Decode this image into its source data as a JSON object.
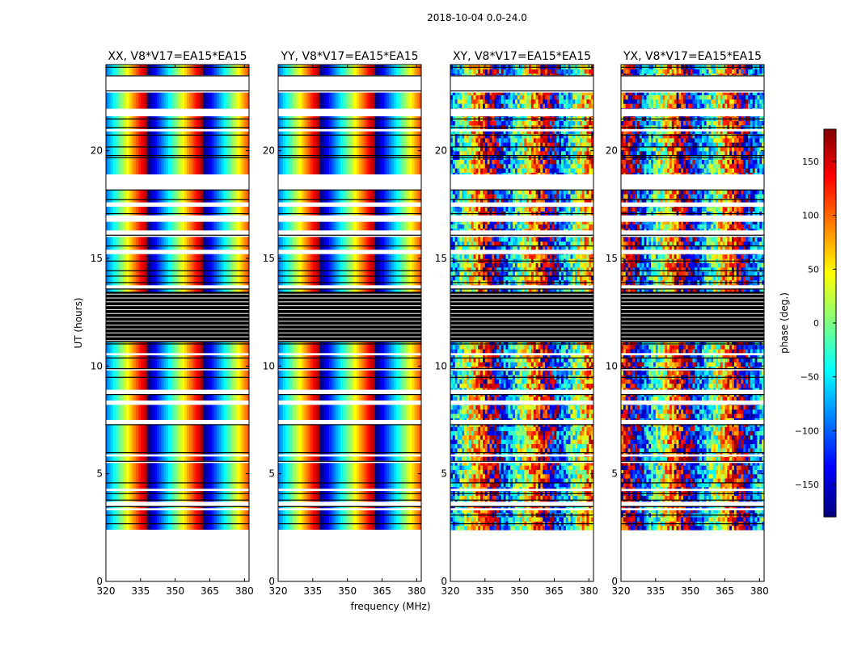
{
  "figure": {
    "suptitle": "2018-10-04 0.0-24.0",
    "xlabel": "frequency (MHz)",
    "ylabel": "UT (hours)"
  },
  "colorbar": {
    "label": "phase (deg.)",
    "range": [
      -180,
      180
    ],
    "ticks": [
      -150,
      -100,
      -50,
      0,
      50,
      100,
      150
    ],
    "colormap": "jet",
    "colors": [
      "#00007f",
      "#0000ff",
      "#007fff",
      "#00ffff",
      "#7fff7f",
      "#ffff00",
      "#ff7f00",
      "#ff0000",
      "#7f0000"
    ]
  },
  "chart_data": [
    {
      "type": "heatmap",
      "title": "XX, V8*V17=EA15*EA15",
      "xlabel": "",
      "ylabel": "UT (hours)",
      "xlim": [
        320,
        382
      ],
      "ylim": [
        0,
        24
      ],
      "xticks": [
        320,
        335,
        350,
        365,
        380
      ],
      "yticks": [
        0,
        5,
        10,
        15,
        20
      ],
      "pattern": "smooth",
      "phase_fringe": {
        "phase_at_320MHz": -90,
        "deg_per_MHz": 15
      },
      "data_time_range": [
        2.4,
        24
      ]
    },
    {
      "type": "heatmap",
      "title": "YY, V8*V17=EA15*EA15",
      "xlabel": "frequency (MHz)",
      "ylabel": "",
      "xlim": [
        320,
        382
      ],
      "ylim": [
        0,
        24
      ],
      "xticks": [
        320,
        335,
        350,
        365,
        380
      ],
      "yticks": [
        0,
        5,
        10,
        15,
        20
      ],
      "pattern": "smooth",
      "phase_fringe": {
        "phase_at_320MHz": -90,
        "deg_per_MHz": 15
      },
      "data_time_range": [
        2.4,
        24
      ]
    },
    {
      "type": "heatmap",
      "title": "XY, V8*V17=EA15*EA15",
      "xlabel": "",
      "ylabel": "",
      "xlim": [
        320,
        382
      ],
      "ylim": [
        0,
        24
      ],
      "xticks": [
        320,
        335,
        350,
        365,
        380
      ],
      "yticks": [
        0,
        5,
        10,
        15,
        20
      ],
      "pattern": "noisy",
      "phase_fringe": {
        "phase_at_320MHz": -90,
        "deg_per_MHz": 15
      },
      "data_time_range": [
        2.4,
        24
      ]
    },
    {
      "type": "heatmap",
      "title": "YX, V8*V17=EA15*EA15",
      "xlabel": "",
      "ylabel": "",
      "xlim": [
        320,
        382
      ],
      "ylim": [
        0,
        24
      ],
      "xticks": [
        320,
        335,
        350,
        365,
        380
      ],
      "yticks": [
        0,
        5,
        10,
        15,
        20
      ],
      "pattern": "noisy",
      "phase_fringe": {
        "phase_at_320MHz": 120,
        "deg_per_MHz": 15
      },
      "data_time_range": [
        2.4,
        24
      ]
    }
  ]
}
